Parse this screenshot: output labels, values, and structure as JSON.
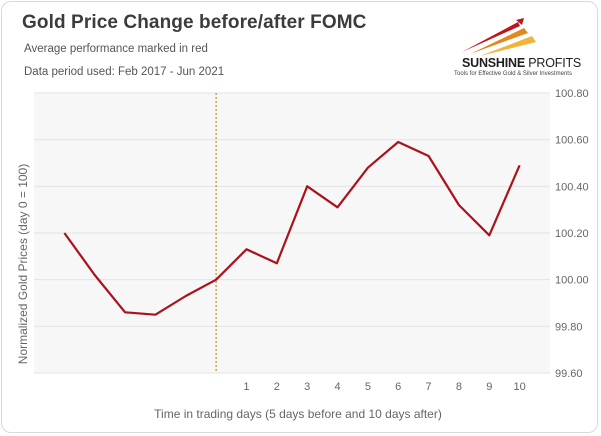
{
  "title": "Gold Price Change before/after FOMC",
  "subtitle": "Average performance marked in red",
  "data_period": "Data period used: Feb 2017 - Jun 2021",
  "logo": {
    "brand_bold": "SUNSHINE",
    "brand_thin": "PROFITS",
    "tagline": "Tools for Effective Gold & Silver Investments"
  },
  "colors": {
    "line": "#a8131c",
    "event_line": "#c29a2c",
    "grid": "#e3e3e3",
    "plot_bg": "#f7f7f7"
  },
  "chart_data": {
    "type": "line",
    "x": [
      -5,
      -4,
      -3,
      -2,
      -1,
      0,
      1,
      2,
      3,
      4,
      5,
      6,
      7,
      8,
      9,
      10
    ],
    "series": [
      {
        "values": [
          100.2,
          100.02,
          99.86,
          99.85,
          99.93,
          100.0,
          100.13,
          100.07,
          100.4,
          100.31,
          100.48,
          100.59,
          100.53,
          100.32,
          100.19,
          100.49
        ]
      }
    ],
    "xtick_labels": [
      "1",
      "2",
      "3",
      "4",
      "5",
      "6",
      "7",
      "8",
      "9",
      "10"
    ],
    "ytick_labels": [
      "100.80",
      "100.60",
      "100.40",
      "100.20",
      "100.00",
      "99.80",
      "99.60"
    ],
    "ylim": [
      99.6,
      100.8
    ],
    "event_x": 0,
    "xlabel": "Time in trading days  (5 days before and 10 days after)",
    "ylabel": "Normalized Gold Prices (day 0 = 100)",
    "grid": true,
    "yaxis_side": "right"
  }
}
